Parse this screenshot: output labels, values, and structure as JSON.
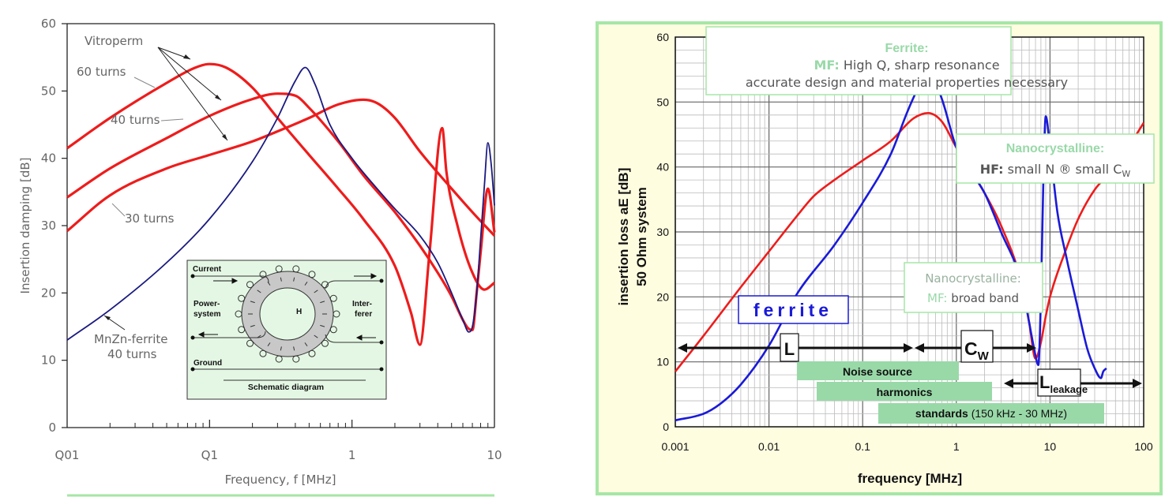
{
  "chart_data": [
    {
      "type": "line",
      "xscale": "log",
      "xlim": [
        0.01,
        10
      ],
      "ylim": [
        0,
        60
      ],
      "xlabel": "Frequency, f [MHz]",
      "ylabel": "Insertion damping [dB]",
      "xtick_labels": [
        "Q01",
        "Q1",
        "1",
        "10"
      ],
      "xtick_values": [
        0.01,
        0.1,
        1,
        10
      ],
      "yticks": [
        0,
        10,
        20,
        30,
        40,
        50,
        60
      ],
      "grid": false,
      "series": [
        {
          "name": "60 turns",
          "color": "#ee1c1c",
          "x": [
            0.01,
            0.02,
            0.05,
            0.08,
            0.1,
            0.13,
            0.2,
            0.3,
            0.5,
            0.8,
            1.2,
            2,
            2.6,
            3,
            3.5,
            4.3,
            4.6,
            5.5,
            7,
            8.5,
            10
          ],
          "y": [
            41.5,
            46,
            51.2,
            53.5,
            54,
            53.5,
            50.5,
            46,
            40.5,
            35.5,
            31,
            24,
            17,
            12.3,
            26,
            44.5,
            38,
            30,
            23,
            20.5,
            21.5
          ]
        },
        {
          "name": "40 turns",
          "color": "#ee1c1c",
          "x": [
            0.01,
            0.02,
            0.05,
            0.1,
            0.2,
            0.3,
            0.4,
            0.5,
            0.8,
            1.2,
            2,
            3,
            4,
            5,
            6,
            6.5,
            7,
            7.5,
            8,
            9,
            10
          ],
          "y": [
            34.2,
            38.5,
            43,
            46.3,
            48.8,
            49.6,
            49.3,
            47.5,
            42.5,
            37.5,
            32,
            27,
            23,
            19.5,
            16,
            14.8,
            14.5,
            20,
            26,
            35.5,
            29
          ]
        },
        {
          "name": "30 turns",
          "color": "#ee1c1c",
          "x": [
            0.01,
            0.02,
            0.05,
            0.1,
            0.2,
            0.3,
            0.5,
            0.8,
            1.2,
            1.5,
            2,
            3,
            5,
            7,
            10
          ],
          "y": [
            29.2,
            34.5,
            38.5,
            40.5,
            42.5,
            44,
            46,
            48,
            48.7,
            48.2,
            46,
            41,
            35.5,
            32,
            28.5
          ]
        },
        {
          "name": "MnZn-ferrite 40 turns",
          "color": "#1a1a80",
          "x": [
            0.01,
            0.02,
            0.05,
            0.1,
            0.2,
            0.3,
            0.4,
            0.47,
            0.55,
            0.7,
            1,
            1.5,
            2,
            3,
            4,
            5,
            6,
            6.6,
            7,
            7.5,
            8,
            8.5,
            9,
            9.5,
            10
          ],
          "y": [
            13,
            17.5,
            24.5,
            31,
            39.5,
            46,
            51.5,
            53.5,
            51,
            45,
            40,
            35.5,
            32.5,
            28.5,
            24.5,
            20,
            16,
            14.2,
            15,
            20,
            28,
            36,
            42.3,
            39,
            33
          ]
        }
      ],
      "annotations": [
        {
          "text": "Vitroperm"
        },
        {
          "text": "60 turns"
        },
        {
          "text": "40 turns"
        },
        {
          "text": "30 turns"
        },
        {
          "text": "MnZn-ferrite"
        },
        {
          "text": "40 turns"
        }
      ],
      "inset": {
        "current": "Current",
        "power": "Power-",
        "system": "system",
        "inter": "Inter-",
        "ferer": "ferer",
        "h": "H",
        "ground": "Ground",
        "caption": "Schematic diagram"
      }
    },
    {
      "type": "line",
      "xscale": "log",
      "xlim": [
        0.001,
        100
      ],
      "ylim": [
        0,
        60
      ],
      "xlabel": "frequency [MHz]",
      "ylabel_line1": "insertion loss aE [dB]",
      "ylabel_line2": "50 Ohm system",
      "xtick_labels": [
        "0.001",
        "0.01",
        "0.1",
        "1",
        "10",
        "100"
      ],
      "xtick_values": [
        0.001,
        0.01,
        0.1,
        1,
        10,
        100
      ],
      "yticks": [
        0,
        10,
        20,
        30,
        40,
        50,
        60
      ],
      "grid": true,
      "series": [
        {
          "name": "red",
          "color": "#ee1c1c",
          "x": [
            0.001,
            0.002,
            0.005,
            0.01,
            0.02,
            0.03,
            0.05,
            0.1,
            0.2,
            0.35,
            0.5,
            0.7,
            1,
            2,
            3,
            5,
            6,
            7,
            8,
            9,
            10,
            15,
            20,
            30,
            50,
            100
          ],
          "y": [
            8.5,
            14,
            21.5,
            27,
            32.5,
            35.5,
            38,
            41,
            44,
            47.5,
            48.3,
            47,
            43,
            36,
            31,
            22,
            16,
            10.5,
            13,
            17,
            20,
            27.5,
            32,
            36.5,
            40,
            46.8
          ]
        },
        {
          "name": "blue",
          "color": "#1a1ad8",
          "x": [
            0.001,
            0.002,
            0.003,
            0.005,
            0.01,
            0.02,
            0.05,
            0.1,
            0.2,
            0.3,
            0.4,
            0.5,
            0.7,
            1,
            2,
            3,
            5,
            6,
            7,
            7.5,
            8,
            8.5,
            9,
            10,
            12,
            15,
            20,
            25,
            30,
            35,
            37,
            40
          ],
          "y": [
            1,
            2,
            3.5,
            6.5,
            12.5,
            20.5,
            28,
            34.5,
            42,
            48.5,
            52.5,
            55,
            50.5,
            43,
            36,
            30,
            22,
            16,
            11,
            9.5,
            20,
            38,
            47.8,
            43,
            33,
            26,
            18,
            12,
            9,
            7.5,
            8.5,
            9
          ]
        }
      ],
      "annotations": {
        "ferrite_box": {
          "title": "Ferrite:",
          "line1_prefix": "MF:",
          "line1": " High Q, sharp resonance",
          "line2": "accurate design and material properties necessary"
        },
        "nano_hf_box": {
          "title": "Nanocrystalline:",
          "prefix": "HF:",
          "text": " small N ® small C",
          "sub": "W"
        },
        "nano_mf_box": {
          "title": "Nanocrystalline:",
          "prefix": "MF:",
          "text": " broad band"
        },
        "ferrite_label": "ferrite",
        "L": "L",
        "CW_C": "C",
        "CW_W": "W",
        "Lleak_L": "L",
        "Lleak_sub": "leakage",
        "noise_source": "Noise source",
        "harmonics": "harmonics",
        "standards_bold": "standards",
        "standards_rest": " (150 kHz - 30 MHz)"
      },
      "colors": {
        "panel_border": "#a6e6a6",
        "panel_bg": "#fffde0",
        "band": "#99d9a8"
      }
    }
  ]
}
